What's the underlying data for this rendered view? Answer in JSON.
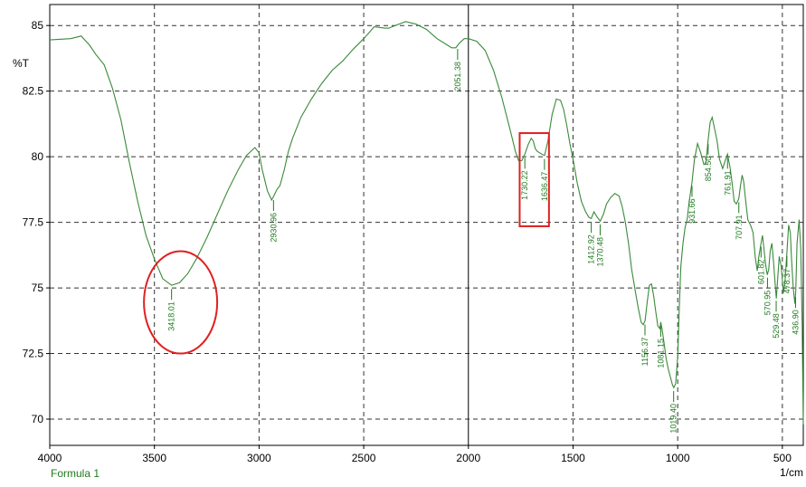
{
  "chart_data": {
    "type": "line",
    "title": "",
    "xlabel": "1/cm",
    "ylabel": "%T",
    "xlim": [
      4000,
      400
    ],
    "ylim": [
      69.0,
      85.8
    ],
    "x_reversed": true,
    "grid": true,
    "x_ticks": [
      4000,
      3500,
      3000,
      2500,
      2000,
      1500,
      1000,
      500
    ],
    "x_tick_labels": [
      "4000",
      "3500",
      "3000",
      "2500",
      "2000",
      "1500",
      "1000",
      "500"
    ],
    "y_ticks": [
      70,
      72.5,
      75,
      77.5,
      80,
      82.5,
      85
    ],
    "y_tick_labels": [
      "70",
      "72.5",
      "75",
      "77.5",
      "80",
      "82.5",
      "85"
    ],
    "legend": [
      "Formula 1"
    ],
    "series": [
      {
        "name": "Formula 1",
        "color": "#3a8a3a",
        "x": [
          4000,
          3900,
          3850,
          3810,
          3780,
          3740,
          3700,
          3660,
          3620,
          3580,
          3540,
          3500,
          3460,
          3418,
          3380,
          3340,
          3300,
          3250,
          3200,
          3150,
          3100,
          3060,
          3020,
          3000,
          2985,
          2960,
          2940,
          2930,
          2915,
          2900,
          2880,
          2860,
          2840,
          2800,
          2750,
          2700,
          2650,
          2600,
          2550,
          2500,
          2450,
          2400,
          2380,
          2350,
          2300,
          2250,
          2200,
          2150,
          2100,
          2080,
          2060,
          2051,
          2040,
          2020,
          2000,
          1960,
          1920,
          1880,
          1840,
          1800,
          1775,
          1760,
          1745,
          1730,
          1715,
          1700,
          1690,
          1680,
          1670,
          1650,
          1636,
          1620,
          1600,
          1580,
          1560,
          1545,
          1530,
          1515,
          1500,
          1480,
          1460,
          1440,
          1425,
          1413,
          1400,
          1385,
          1370,
          1355,
          1340,
          1320,
          1300,
          1280,
          1265,
          1250,
          1235,
          1220,
          1205,
          1190,
          1175,
          1165,
          1156,
          1145,
          1135,
          1125,
          1115,
          1105,
          1095,
          1085,
          1081,
          1075,
          1065,
          1055,
          1045,
          1035,
          1025,
          1019,
          1010,
          1000,
          992,
          985,
          975,
          965,
          955,
          945,
          932,
          920,
          905,
          890,
          875,
          865,
          855,
          845,
          835,
          825,
          812,
          800,
          785,
          775,
          762,
          750,
          740,
          730,
          720,
          708,
          700,
          692,
          685,
          675,
          665,
          650,
          640,
          630,
          620,
          612,
          602,
          595,
          588,
          580,
          572,
          565,
          558,
          550,
          542,
          535,
          529,
          522,
          515,
          505,
          495,
          487,
          478,
          470,
          462,
          456,
          448,
          440,
          436,
          430,
          420,
          412,
          405,
          400
        ],
        "y": [
          84.45,
          84.5,
          84.6,
          84.25,
          83.9,
          83.5,
          82.6,
          81.4,
          79.8,
          78.3,
          77.0,
          76.1,
          75.35,
          75.1,
          75.2,
          75.55,
          76.1,
          76.9,
          77.8,
          78.7,
          79.5,
          80.05,
          80.35,
          80.15,
          79.5,
          78.7,
          78.35,
          78.5,
          78.75,
          78.9,
          79.5,
          80.2,
          80.7,
          81.5,
          82.2,
          82.8,
          83.3,
          83.65,
          84.1,
          84.5,
          84.95,
          84.9,
          84.9,
          85.0,
          85.15,
          85.05,
          84.85,
          84.5,
          84.25,
          84.15,
          84.15,
          84.25,
          84.35,
          84.5,
          84.5,
          84.4,
          84.05,
          83.3,
          82.25,
          81.0,
          80.2,
          79.85,
          79.85,
          80.1,
          80.45,
          80.7,
          80.6,
          80.3,
          80.2,
          80.1,
          80.05,
          80.6,
          81.6,
          82.2,
          82.15,
          81.8,
          81.2,
          80.5,
          79.9,
          79.0,
          78.3,
          77.9,
          77.7,
          77.65,
          77.9,
          77.7,
          77.55,
          77.8,
          78.2,
          78.45,
          78.6,
          78.5,
          78.1,
          77.5,
          76.7,
          75.7,
          75.0,
          74.3,
          73.7,
          73.6,
          73.75,
          74.5,
          75.1,
          75.15,
          74.7,
          74.1,
          73.55,
          73.45,
          73.7,
          73.45,
          72.9,
          72.3,
          71.9,
          71.6,
          71.3,
          71.2,
          71.35,
          72.4,
          74.3,
          75.8,
          76.7,
          77.3,
          77.6,
          78.3,
          79.0,
          79.9,
          80.5,
          80.15,
          79.7,
          79.75,
          80.6,
          81.3,
          81.5,
          81.1,
          80.6,
          79.9,
          79.55,
          79.8,
          80.1,
          79.6,
          79.0,
          78.3,
          78.2,
          78.4,
          78.9,
          79.3,
          79.05,
          78.3,
          77.6,
          77.35,
          77.1,
          76.2,
          75.65,
          76.2,
          76.7,
          77.0,
          76.5,
          75.9,
          75.5,
          75.7,
          76.4,
          76.7,
          76.0,
          75.2,
          74.6,
          75.4,
          76.2,
          75.8,
          74.8,
          75.3,
          76.4,
          77.4,
          77.1,
          76.1,
          75.0,
          74.4,
          74.9,
          76.7,
          77.6,
          76.5,
          73.5,
          69.8
        ]
      }
    ],
    "peak_labels": [
      {
        "x": 3418.01,
        "text": "3418.01"
      },
      {
        "x": 2930.96,
        "text": "2930.96"
      },
      {
        "x": 2051.38,
        "text": "2051.38"
      },
      {
        "x": 1730.22,
        "text": "1730.22"
      },
      {
        "x": 1636.47,
        "text": "1636.47"
      },
      {
        "x": 1412.92,
        "text": "1412.92"
      },
      {
        "x": 1370.48,
        "text": "1370.48"
      },
      {
        "x": 1156.37,
        "text": "1156.37"
      },
      {
        "x": 1081.15,
        "text": "1081.15"
      },
      {
        "x": 1019.4,
        "text": "1019.40"
      },
      {
        "x": 931.66,
        "text": "931.66"
      },
      {
        "x": 854.5,
        "text": "854.50"
      },
      {
        "x": 761.91,
        "text": "761.91"
      },
      {
        "x": 707.91,
        "text": "707.91"
      },
      {
        "x": 601.82,
        "text": "601.82"
      },
      {
        "x": 570.95,
        "text": "570.95"
      },
      {
        "x": 529.48,
        "text": "529.48"
      },
      {
        "x": 478.37,
        "text": "478.37"
      },
      {
        "x": 436.9,
        "text": "436.90"
      }
    ],
    "annotations": [
      {
        "shape": "ellipse",
        "color": "#e02020",
        "x_range": [
          3550,
          3200
        ],
        "y_range": [
          72.5,
          76.4
        ]
      },
      {
        "shape": "rectangle",
        "color": "#e02020",
        "x_range": [
          1755,
          1615
        ],
        "y_range": [
          77.35,
          80.9
        ]
      }
    ]
  }
}
